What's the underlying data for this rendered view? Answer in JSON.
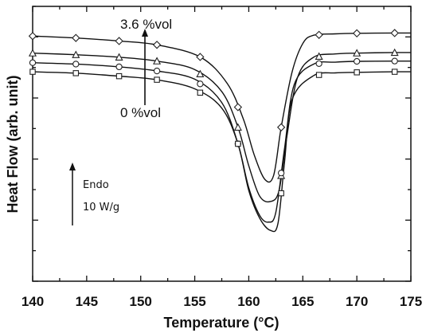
{
  "chart_data": {
    "type": "line",
    "title": "",
    "xlabel": "Temperature (°C)",
    "ylabel": "Heat Flow (arb. unit)",
    "xlim": [
      140,
      175
    ],
    "x_ticks": [
      "140",
      "145",
      "150",
      "155",
      "160",
      "165",
      "170",
      "175"
    ],
    "ylim": [
      0,
      1
    ],
    "y_tick_labels": "none",
    "grid": false,
    "legend": "none",
    "marker_style": "open",
    "series_order_note_from_plot": "",
    "series": [
      {
        "marker": "diamond",
        "x": [
          140.0,
          144.0,
          148.0,
          151.5,
          155.5,
          158.0,
          159.5,
          160.5,
          161.5,
          162.3,
          163.0,
          164.0,
          165.0,
          166.0,
          168.0,
          170.0,
          173.5,
          175.0
        ],
        "y": [
          0.892,
          0.885,
          0.874,
          0.86,
          0.816,
          0.72,
          0.59,
          0.46,
          0.37,
          0.385,
          0.56,
          0.76,
          0.865,
          0.895,
          0.9,
          0.902,
          0.903,
          0.903
        ]
      },
      {
        "marker": "triangle",
        "x": [
          140.0,
          144.0,
          148.0,
          151.5,
          155.0,
          157.5,
          159.0,
          160.0,
          161.0,
          162.0,
          162.8,
          163.5,
          164.5,
          166.0,
          168.0,
          170.0,
          173.5,
          175.0
        ],
        "y": [
          0.83,
          0.824,
          0.815,
          0.801,
          0.77,
          0.69,
          0.56,
          0.42,
          0.31,
          0.29,
          0.33,
          0.52,
          0.74,
          0.815,
          0.827,
          0.83,
          0.832,
          0.832
        ]
      },
      {
        "marker": "circle",
        "x": [
          140.0,
          144.0,
          148.0,
          151.5,
          155.0,
          157.5,
          159.0,
          160.0,
          161.0,
          161.8,
          162.5,
          163.3,
          164.2,
          166.0,
          168.0,
          170.0,
          173.5,
          175.0
        ],
        "y": [
          0.795,
          0.79,
          0.78,
          0.765,
          0.735,
          0.65,
          0.5,
          0.34,
          0.24,
          0.215,
          0.25,
          0.48,
          0.715,
          0.79,
          0.797,
          0.8,
          0.801,
          0.801
        ]
      },
      {
        "marker": "square",
        "x": [
          140.0,
          144.0,
          148.0,
          151.5,
          155.0,
          157.5,
          159.0,
          160.0,
          161.0,
          162.0,
          162.7,
          163.3,
          164.0,
          166.0,
          168.0,
          170.0,
          173.5,
          175.0
        ],
        "y": [
          0.762,
          0.757,
          0.746,
          0.733,
          0.7,
          0.63,
          0.5,
          0.33,
          0.23,
          0.185,
          0.21,
          0.43,
          0.66,
          0.748,
          0.758,
          0.76,
          0.762,
          0.762
        ]
      }
    ],
    "annotations": {
      "top_label": "3.6 %vol",
      "bottom_label": "0 %vol",
      "endo_label": "Endo",
      "scale_label": "10 W/g"
    }
  }
}
